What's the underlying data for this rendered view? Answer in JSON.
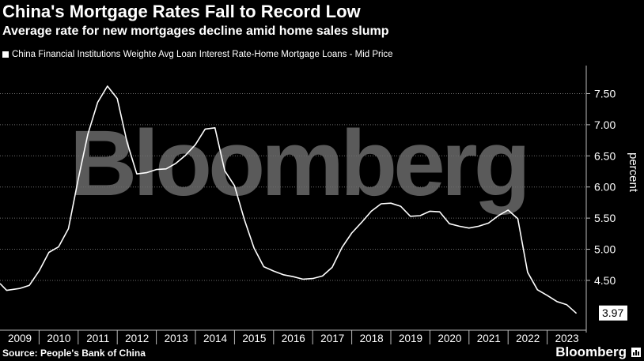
{
  "header": {
    "title": "China's Mortgage Rates Fall to Record Low",
    "subtitle": "Average rate for new mortgages decline amid home sales slump",
    "legend_label": "China Financial Institutions Weighte Avg Loan Interest Rate-Home Mortgage Loans - Mid Price"
  },
  "watermark": "Bloomberg",
  "footer": {
    "source": "Source: People's Bank of China",
    "brand": "Bloomberg"
  },
  "colors": {
    "background": "#000000",
    "line": "#ffffff",
    "grid": "#6e6e6e",
    "watermark": "#5a5a5a"
  },
  "chart_data": {
    "type": "line",
    "ylabel": "percent",
    "ylim": [
      3.7,
      7.95
    ],
    "yticks": [
      4.5,
      5.0,
      5.5,
      6.0,
      6.5,
      7.0,
      7.5
    ],
    "ytick_labels": [
      "4.50",
      "5.00",
      "5.50",
      "6.00",
      "6.50",
      "7.00",
      "7.50"
    ],
    "xlim": [
      2009.0,
      2024.0
    ],
    "xticks": [
      2009,
      2010,
      2011,
      2012,
      2013,
      2014,
      2015,
      2016,
      2017,
      2018,
      2019,
      2020,
      2021,
      2022,
      2023
    ],
    "xtick_labels": [
      "2009",
      "2010",
      "2011",
      "2012",
      "2013",
      "2014",
      "2015",
      "2016",
      "2017",
      "2018",
      "2019",
      "2020",
      "2021",
      "2022",
      "2023"
    ],
    "last_value_label": "3.97",
    "grid": true,
    "series": [
      {
        "values_x": [
          2009.0,
          2009.17,
          2009.5,
          2009.75,
          2010.0,
          2010.25,
          2010.5,
          2010.75,
          2011.0,
          2011.25,
          2011.5,
          2011.75,
          2012.0,
          2012.25,
          2012.5,
          2012.75,
          2013.0,
          2013.25,
          2013.5,
          2013.75,
          2014.0,
          2014.25,
          2014.5,
          2014.75,
          2015.0,
          2015.25,
          2015.5,
          2015.75,
          2016.0,
          2016.25,
          2016.5,
          2016.75,
          2017.0,
          2017.25,
          2017.5,
          2017.75,
          2018.0,
          2018.25,
          2018.5,
          2018.75,
          2019.0,
          2019.25,
          2019.5,
          2019.75,
          2020.0,
          2020.25,
          2020.5,
          2020.75,
          2021.0,
          2021.25,
          2021.5,
          2021.75,
          2022.0,
          2022.25,
          2022.5,
          2022.75,
          2023.0,
          2023.25,
          2023.5,
          2023.75
        ],
        "values_y": [
          4.45,
          4.34,
          4.37,
          4.42,
          4.65,
          4.95,
          5.04,
          5.33,
          6.12,
          6.85,
          7.36,
          7.62,
          7.42,
          6.72,
          6.21,
          6.23,
          6.28,
          6.29,
          6.38,
          6.51,
          6.68,
          6.93,
          6.95,
          6.26,
          6.02,
          5.48,
          5.02,
          4.72,
          4.65,
          4.59,
          4.56,
          4.52,
          4.53,
          4.57,
          4.71,
          5.03,
          5.26,
          5.43,
          5.61,
          5.73,
          5.74,
          5.69,
          5.53,
          5.54,
          5.61,
          5.6,
          5.41,
          5.37,
          5.34,
          5.37,
          5.42,
          5.54,
          5.63,
          5.49,
          4.63,
          4.35,
          4.26,
          4.16,
          4.11,
          3.97
        ]
      }
    ]
  }
}
